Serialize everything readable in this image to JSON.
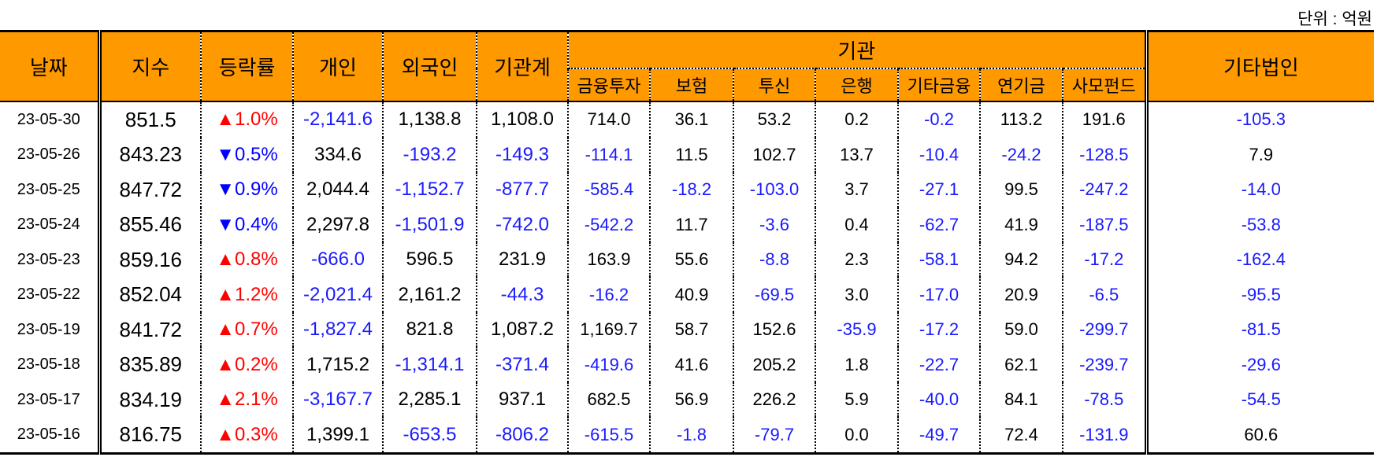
{
  "unit_label": "단위 : 억원",
  "headers": {
    "date": "날짜",
    "index": "지수",
    "change": "등락률",
    "individual": "개인",
    "foreign": "외국인",
    "inst_total": "기관계",
    "inst_group": "기관",
    "sub": [
      "금융투자",
      "보험",
      "투신",
      "은행",
      "기타금융",
      "연기금",
      "사모펀드"
    ],
    "other_corp": "기타법인"
  },
  "rows": [
    {
      "date": "23-05-30",
      "index": "851.5",
      "dir": "up",
      "change": "▲1.0%",
      "individual": "-2,141.6",
      "foreign": "1,138.8",
      "inst_total": "1,108.0",
      "sub": [
        "714.0",
        "36.1",
        "53.2",
        "0.2",
        "-0.2",
        "113.2",
        "191.6"
      ],
      "other_corp": "-105.3"
    },
    {
      "date": "23-05-26",
      "index": "843.23",
      "dir": "down",
      "change": "▼0.5%",
      "individual": "334.6",
      "foreign": "-193.2",
      "inst_total": "-149.3",
      "sub": [
        "-114.1",
        "11.5",
        "102.7",
        "13.7",
        "-10.4",
        "-24.2",
        "-128.5"
      ],
      "other_corp": "7.9"
    },
    {
      "date": "23-05-25",
      "index": "847.72",
      "dir": "down",
      "change": "▼0.9%",
      "individual": "2,044.4",
      "foreign": "-1,152.7",
      "inst_total": "-877.7",
      "sub": [
        "-585.4",
        "-18.2",
        "-103.0",
        "3.7",
        "-27.1",
        "99.5",
        "-247.2"
      ],
      "other_corp": "-14.0"
    },
    {
      "date": "23-05-24",
      "index": "855.46",
      "dir": "down",
      "change": "▼0.4%",
      "individual": "2,297.8",
      "foreign": "-1,501.9",
      "inst_total": "-742.0",
      "sub": [
        "-542.2",
        "11.7",
        "-3.6",
        "0.4",
        "-62.7",
        "41.9",
        "-187.5"
      ],
      "other_corp": "-53.8"
    },
    {
      "date": "23-05-23",
      "index": "859.16",
      "dir": "up",
      "change": "▲0.8%",
      "individual": "-666.0",
      "foreign": "596.5",
      "inst_total": "231.9",
      "sub": [
        "163.9",
        "55.6",
        "-8.8",
        "2.3",
        "-58.1",
        "94.2",
        "-17.2"
      ],
      "other_corp": "-162.4"
    },
    {
      "date": "23-05-22",
      "index": "852.04",
      "dir": "up",
      "change": "▲1.2%",
      "individual": "-2,021.4",
      "foreign": "2,161.2",
      "inst_total": "-44.3",
      "sub": [
        "-16.2",
        "40.9",
        "-69.5",
        "3.0",
        "-17.0",
        "20.9",
        "-6.5"
      ],
      "other_corp": "-95.5"
    },
    {
      "date": "23-05-19",
      "index": "841.72",
      "dir": "up",
      "change": "▲0.7%",
      "individual": "-1,827.4",
      "foreign": "821.8",
      "inst_total": "1,087.2",
      "sub": [
        "1,169.7",
        "58.7",
        "152.6",
        "-35.9",
        "-17.2",
        "59.0",
        "-299.7"
      ],
      "other_corp": "-81.5"
    },
    {
      "date": "23-05-18",
      "index": "835.89",
      "dir": "up",
      "change": "▲0.2%",
      "individual": "1,715.2",
      "foreign": "-1,314.1",
      "inst_total": "-371.4",
      "sub": [
        "-419.6",
        "41.6",
        "205.2",
        "1.8",
        "-22.7",
        "62.1",
        "-239.7"
      ],
      "other_corp": "-29.6"
    },
    {
      "date": "23-05-17",
      "index": "834.19",
      "dir": "up",
      "change": "▲2.1%",
      "individual": "-3,167.7",
      "foreign": "2,285.1",
      "inst_total": "937.1",
      "sub": [
        "682.5",
        "56.9",
        "226.2",
        "5.9",
        "-40.0",
        "84.1",
        "-78.5"
      ],
      "other_corp": "-54.5"
    },
    {
      "date": "23-05-16",
      "index": "816.75",
      "dir": "up",
      "change": "▲0.3%",
      "individual": "1,399.1",
      "foreign": "-653.5",
      "inst_total": "-806.2",
      "sub": [
        "-615.5",
        "-1.8",
        "-79.7",
        "0.0",
        "-49.7",
        "72.4",
        "-131.9"
      ],
      "other_corp": "60.6"
    }
  ],
  "colors": {
    "header_bg": "#FF9900",
    "negative": "#1a1aff",
    "up": "#ff0000",
    "down": "#0000ff"
  }
}
